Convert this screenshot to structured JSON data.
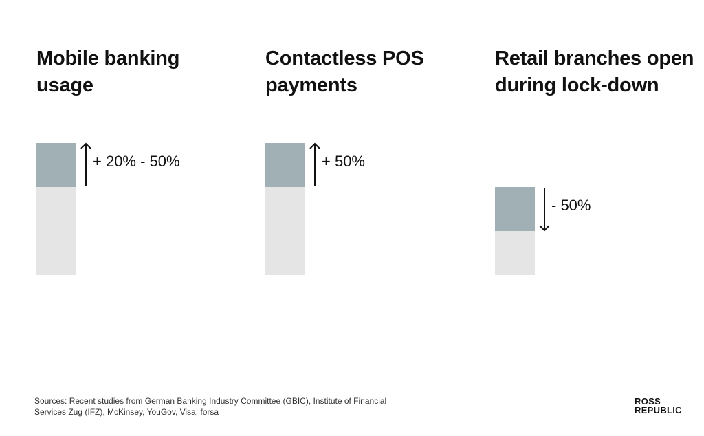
{
  "chart_data": [
    {
      "type": "bar",
      "title": "Mobile banking usage",
      "direction": "up",
      "change_label": "+ 20% - 50%"
    },
    {
      "type": "bar",
      "title": "Contactless POS payments",
      "direction": "up",
      "change_label": "+ 50%"
    },
    {
      "type": "bar",
      "title": "Retail branches open during lock-down",
      "direction": "down",
      "change_label": "- 50%"
    }
  ],
  "colors": {
    "base_bar": "#e5e5e5",
    "change_bar": "#a0b0b4",
    "arrow": "#111111"
  },
  "footer": {
    "sources": "Sources: Recent studies from German Banking Industry Committee (GBIC), Institute of Financial Services Zug (IFZ), McKinsey, YouGov, Visa, forsa",
    "logo_line1": "ROSS",
    "logo_line2": "REPUBLIC"
  }
}
